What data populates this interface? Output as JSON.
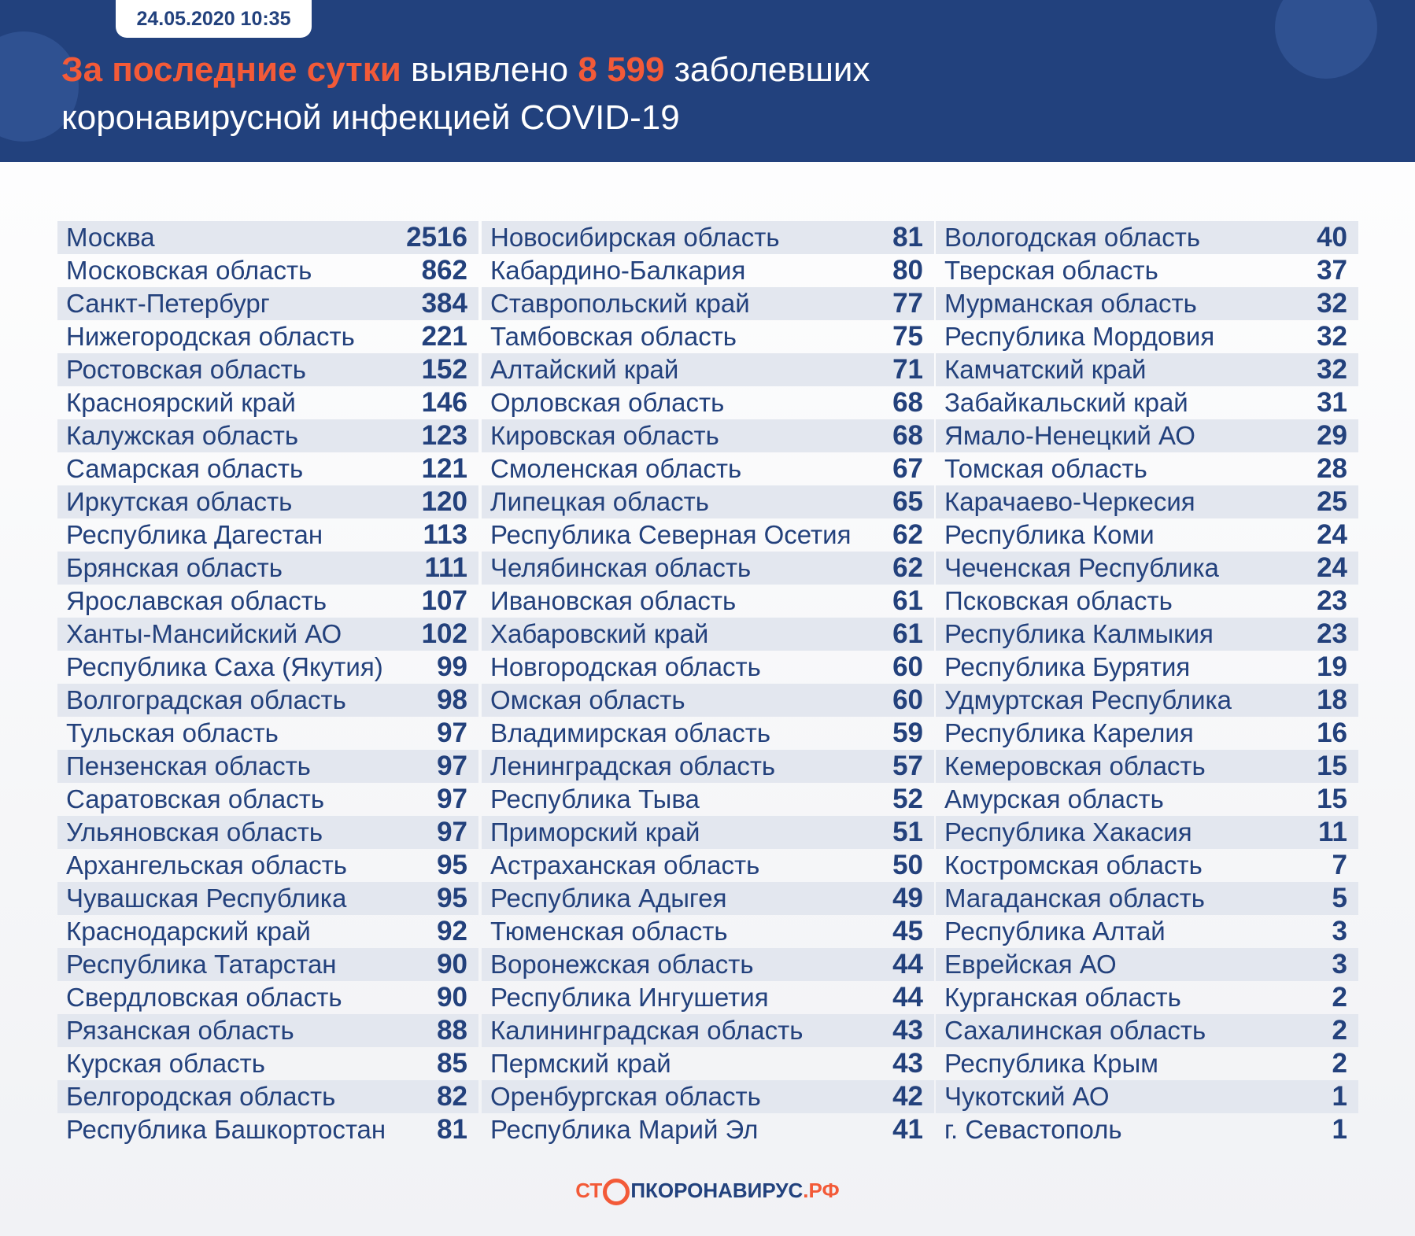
{
  "header": {
    "date": "24.05.2020 10:35",
    "title": {
      "part1": "За последние сутки",
      "part2": "выявлено",
      "number": "8 599",
      "part3": "заболевших",
      "part4": "коронавирусной инфекцией COVID-19"
    }
  },
  "table": {
    "columns": [
      [
        [
          "Москва",
          2516
        ],
        [
          "Московская область",
          862
        ],
        [
          "Санкт-Петербург",
          384
        ],
        [
          "Нижегородская область",
          221
        ],
        [
          "Ростовская область",
          152
        ],
        [
          "Красноярский край",
          146
        ],
        [
          "Калужская область",
          123
        ],
        [
          "Самарская область",
          121
        ],
        [
          "Иркутская область",
          120
        ],
        [
          "Республика Дагестан",
          113
        ],
        [
          "Брянская область",
          111
        ],
        [
          "Ярославская область",
          107
        ],
        [
          "Ханты-Мансийский АО",
          102
        ],
        [
          "Республика Саха (Якутия)",
          99
        ],
        [
          "Волгоградская область",
          98
        ],
        [
          "Тульская область",
          97
        ],
        [
          "Пензенская область",
          97
        ],
        [
          "Саратовская область",
          97
        ],
        [
          "Ульяновская область",
          97
        ],
        [
          "Архангельская область",
          95
        ],
        [
          "Чувашская Республика",
          95
        ],
        [
          "Краснодарский край",
          92
        ],
        [
          "Республика Татарстан",
          90
        ],
        [
          "Свердловская область",
          90
        ],
        [
          "Рязанская область",
          88
        ],
        [
          "Курская область",
          85
        ],
        [
          "Белгородская область",
          82
        ],
        [
          "Республика Башкортостан",
          81
        ]
      ],
      [
        [
          "Новосибирская область",
          81
        ],
        [
          "Кабардино-Балкария",
          80
        ],
        [
          "Ставропольский край",
          77
        ],
        [
          "Тамбовская область",
          75
        ],
        [
          "Алтайский край",
          71
        ],
        [
          "Орловская область",
          68
        ],
        [
          "Кировская область",
          68
        ],
        [
          "Смоленская область",
          67
        ],
        [
          "Липецкая область",
          65
        ],
        [
          "Республика Северная Осетия",
          62
        ],
        [
          "Челябинская область",
          62
        ],
        [
          "Ивановская область",
          61
        ],
        [
          "Хабаровский край",
          61
        ],
        [
          "Новгородская область",
          60
        ],
        [
          "Омская область",
          60
        ],
        [
          "Владимирская область",
          59
        ],
        [
          "Ленинградская область",
          57
        ],
        [
          "Республика Тыва",
          52
        ],
        [
          "Приморский край",
          51
        ],
        [
          "Астраханская область",
          50
        ],
        [
          "Республика Адыгея",
          49
        ],
        [
          "Тюменская область",
          45
        ],
        [
          "Воронежская область",
          44
        ],
        [
          "Республика Ингушетия",
          44
        ],
        [
          "Калининградская область",
          43
        ],
        [
          "Пермский край",
          43
        ],
        [
          "Оренбургская область",
          42
        ],
        [
          "Республика Марий Эл",
          41
        ]
      ],
      [
        [
          "Вологодская область",
          40
        ],
        [
          "Тверская область",
          37
        ],
        [
          "Мурманская область",
          32
        ],
        [
          "Республика Мордовия",
          32
        ],
        [
          "Камчатский край",
          32
        ],
        [
          "Забайкальский край",
          31
        ],
        [
          "Ямало-Ненецкий АО",
          29
        ],
        [
          "Томская область",
          28
        ],
        [
          "Карачаево-Черкесия",
          25
        ],
        [
          "Республика Коми",
          24
        ],
        [
          "Чеченская Республика",
          24
        ],
        [
          "Псковская область",
          23
        ],
        [
          "Республика Калмыкия",
          23
        ],
        [
          "Республика Бурятия",
          19
        ],
        [
          "Удмуртская Республика",
          18
        ],
        [
          "Республика Карелия",
          16
        ],
        [
          "Кемеровская область",
          15
        ],
        [
          "Амурская область",
          15
        ],
        [
          "Республика Хакасия",
          11
        ],
        [
          "Костромская область",
          7
        ],
        [
          "Магаданская область",
          5
        ],
        [
          "Республика Алтай",
          3
        ],
        [
          "Еврейская АО",
          3
        ],
        [
          "Курганская область",
          2
        ],
        [
          "Сахалинская область",
          2
        ],
        [
          "Республика Крым",
          2
        ],
        [
          "Чукотский АО",
          1
        ],
        [
          "г. Севастополь",
          1
        ]
      ]
    ]
  },
  "footer": {
    "logo": {
      "part1": "СТ",
      "part2": "ПКОРОНАВИРУС",
      "part3": ".РФ"
    }
  }
}
